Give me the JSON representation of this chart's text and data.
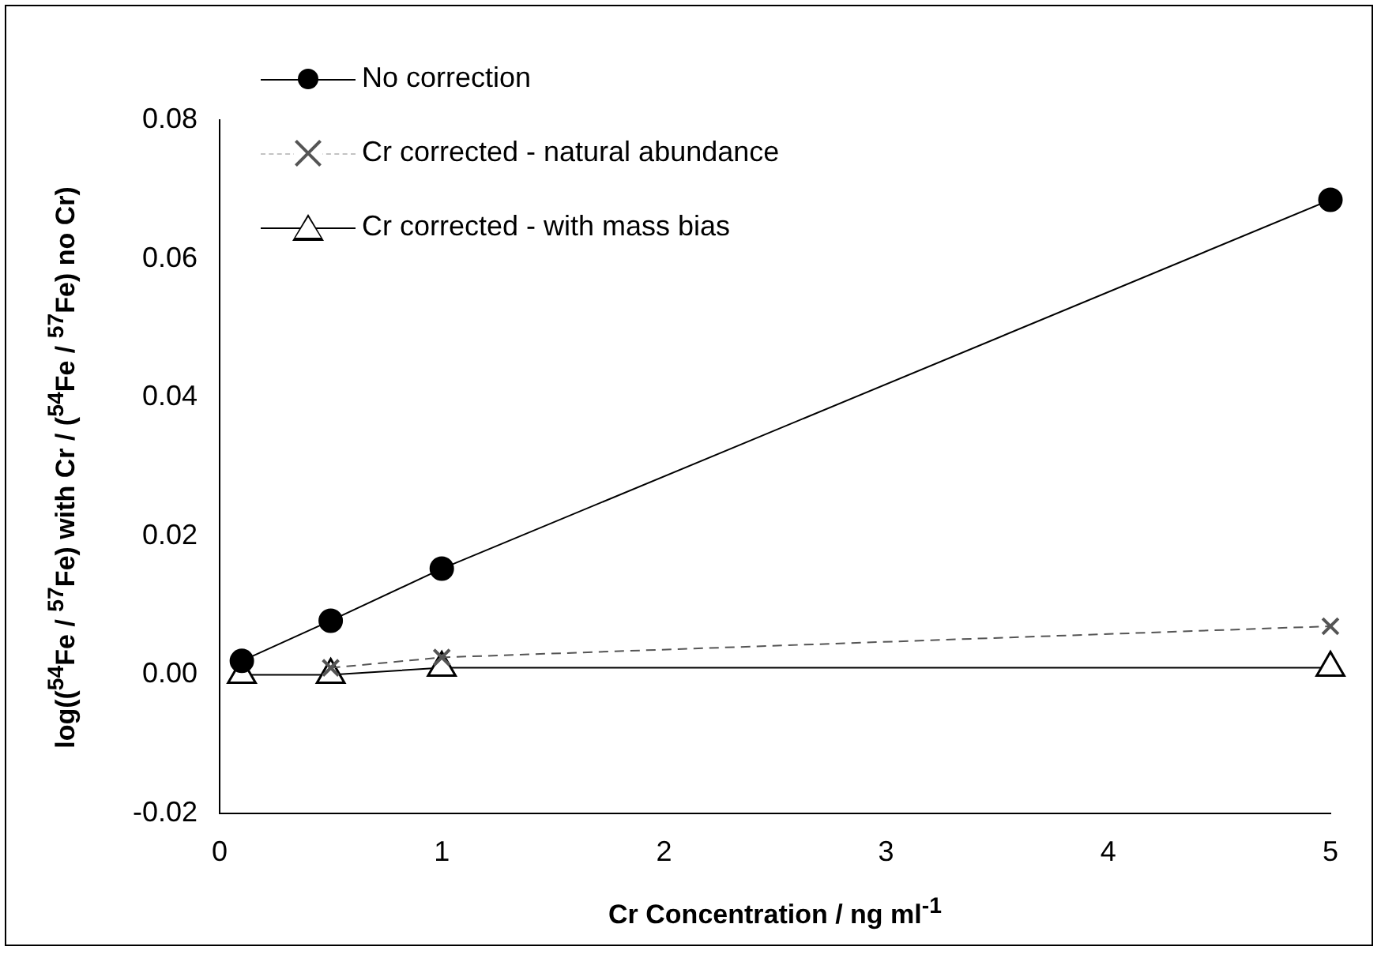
{
  "chart_data": {
    "type": "line",
    "xlabel": "Cr Concentration / ng ml$^{-1}$",
    "ylabel": "log(($^{54}$Fe / $^{57}$Fe) with Cr / ($^{54}$Fe / $^{57}$Fe) no Cr)",
    "x": [
      0.1,
      0.5,
      1,
      5
    ],
    "series": [
      {
        "name": "No correction",
        "color": "#000000",
        "marker": "circle",
        "line_style": "solid",
        "values": [
          0.002,
          0.0078,
          0.0153,
          0.0685
        ]
      },
      {
        "name": "Cr corrected - natural abundance",
        "color": "#555555",
        "marker": "cross",
        "line_style": "dashed",
        "values": [
          null,
          0.001,
          0.0025,
          0.007
        ]
      },
      {
        "name": "Cr corrected - with mass bias",
        "color": "#000000",
        "marker": "triangle",
        "line_style": "solid",
        "values": [
          0,
          0,
          0.001,
          0.001
        ]
      }
    ],
    "xlim": [
      0,
      5
    ],
    "xticks": [
      0,
      1,
      2,
      3,
      4,
      5
    ],
    "ylim": [
      -0.02,
      0.08
    ],
    "yticks": [
      {
        "value": -0.02,
        "label": "-0.02"
      },
      {
        "value": 0,
        "label": "0.00"
      },
      {
        "value": 0.02,
        "label": "0.02"
      },
      {
        "value": 0.04,
        "label": "0.04"
      },
      {
        "value": 0.06,
        "label": "0.06"
      },
      {
        "value": 0.08,
        "label": "0.08"
      }
    ],
    "legend": "top left"
  }
}
